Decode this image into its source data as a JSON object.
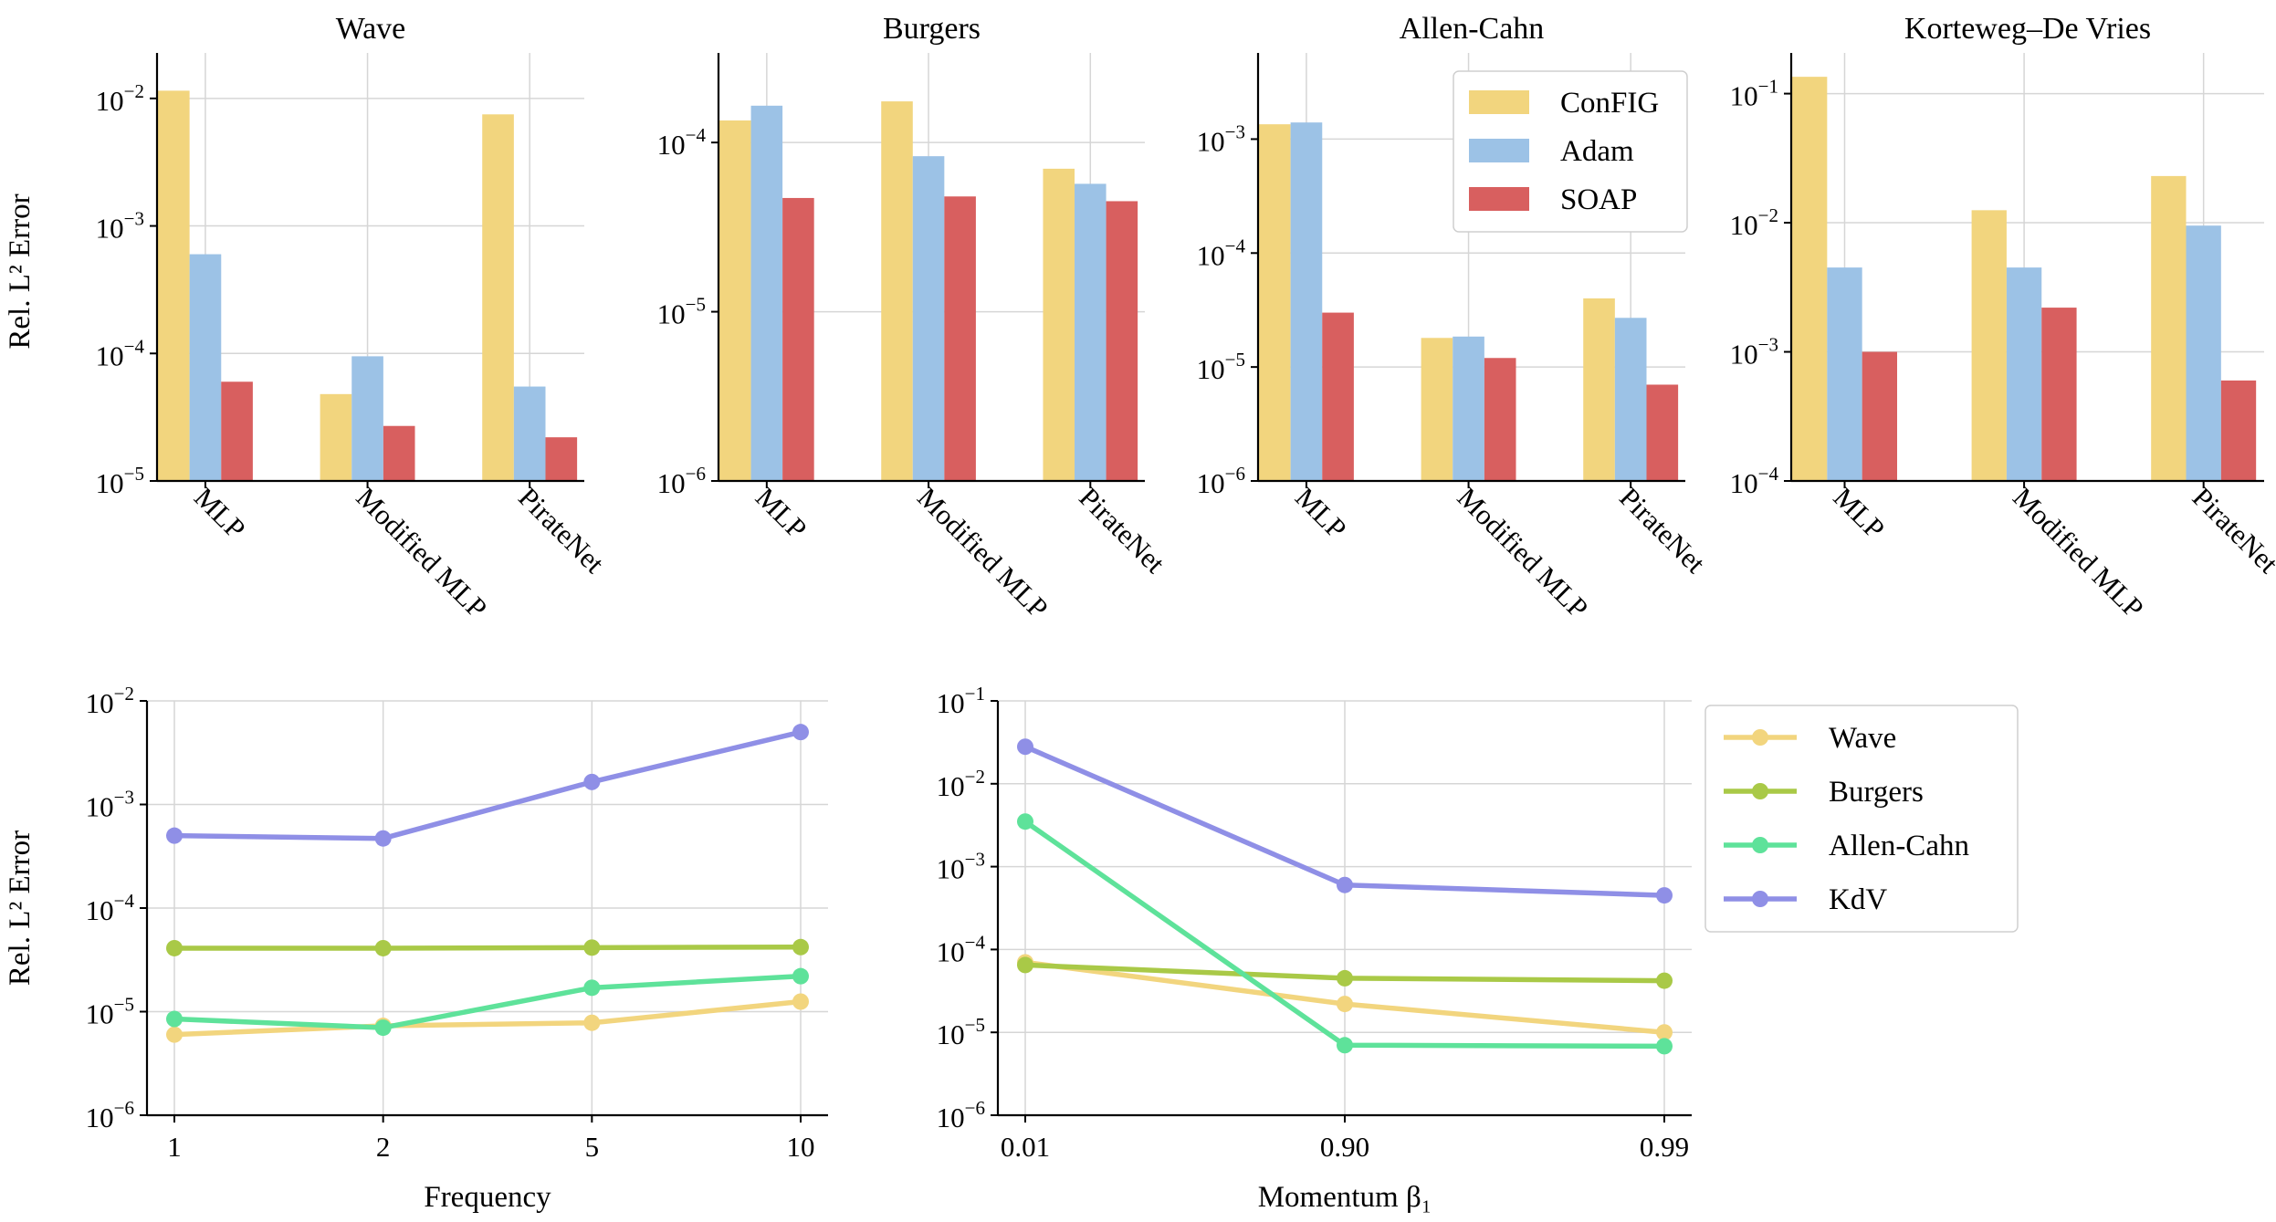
{
  "figure": {
    "colors": {
      "ConFIG": "#f2d57e",
      "Adam": "#9cc2e6",
      "SOAP": "#d85f5f",
      "Wave": "#f2d57e",
      "Burgers": "#a9c947",
      "Allen-Cahn": "#5ee29a",
      "KdV": "#8f8fe6"
    },
    "shared_ylabel": "Rel. L² Error",
    "bar_legend": [
      "ConFIG",
      "Adam",
      "SOAP"
    ],
    "line_legend": [
      "Wave",
      "Burgers",
      "Allen-Cahn",
      "KdV"
    ]
  },
  "chart_data": [
    {
      "type": "bar",
      "title": "Wave",
      "categories": [
        "MLP",
        "Modified MLP",
        "PirateNet"
      ],
      "series": [
        {
          "name": "ConFIG",
          "values": [
            0.0115,
            4.8e-05,
            0.0075
          ]
        },
        {
          "name": "Adam",
          "values": [
            0.0006,
            9.5e-05,
            5.5e-05
          ]
        },
        {
          "name": "SOAP",
          "values": [
            6e-05,
            2.7e-05,
            2.2e-05
          ]
        }
      ],
      "yscale": "log",
      "ylim": [
        1e-05,
        0.022
      ],
      "yticks": [
        -5,
        -4,
        -3,
        -2
      ],
      "ylabel": "Rel. L² Error",
      "xlabel": ""
    },
    {
      "type": "bar",
      "title": "Burgers",
      "categories": [
        "MLP",
        "Modified MLP",
        "PirateNet"
      ],
      "series": [
        {
          "name": "ConFIG",
          "values": [
            0.000135,
            0.000175,
            7e-05
          ]
        },
        {
          "name": "Adam",
          "values": [
            0.000165,
            8.3e-05,
            5.7e-05
          ]
        },
        {
          "name": "SOAP",
          "values": [
            4.7e-05,
            4.8e-05,
            4.5e-05
          ]
        }
      ],
      "yscale": "log",
      "ylim": [
        1e-06,
        0.00033
      ],
      "yticks": [
        -6,
        -5,
        -4
      ],
      "ylabel": "",
      "xlabel": ""
    },
    {
      "type": "bar",
      "title": "Allen-Cahn",
      "categories": [
        "MLP",
        "Modified MLP",
        "PirateNet"
      ],
      "series": [
        {
          "name": "ConFIG",
          "values": [
            0.00135,
            1.8e-05,
            4e-05
          ]
        },
        {
          "name": "Adam",
          "values": [
            0.0014,
            1.85e-05,
            2.7e-05
          ]
        },
        {
          "name": "SOAP",
          "values": [
            3e-05,
            1.2e-05,
            7e-06
          ]
        }
      ],
      "yscale": "log",
      "ylim": [
        1e-06,
        0.0055
      ],
      "yticks": [
        -6,
        -5,
        -4,
        -3
      ],
      "ylabel": "",
      "xlabel": ""
    },
    {
      "type": "bar",
      "title": "Korteweg–De Vries",
      "categories": [
        "MLP",
        "Modified MLP",
        "PirateNet"
      ],
      "series": [
        {
          "name": "ConFIG",
          "values": [
            0.135,
            0.0125,
            0.023
          ]
        },
        {
          "name": "Adam",
          "values": [
            0.0045,
            0.0045,
            0.0095
          ]
        },
        {
          "name": "SOAP",
          "values": [
            0.001,
            0.0022,
            0.0006
          ]
        }
      ],
      "yscale": "log",
      "ylim": [
        0.0001,
        0.2
      ],
      "yticks": [
        -4,
        -3,
        -2,
        -1
      ],
      "ylabel": "",
      "xlabel": ""
    },
    {
      "type": "line",
      "title": "",
      "x": [
        "1",
        "2",
        "5",
        "10"
      ],
      "series": [
        {
          "name": "Wave",
          "values": [
            6e-06,
            7.3e-06,
            7.8e-06,
            1.25e-05
          ]
        },
        {
          "name": "Burgers",
          "values": [
            4.1e-05,
            4.1e-05,
            4.15e-05,
            4.2e-05
          ]
        },
        {
          "name": "Allen-Cahn",
          "values": [
            8.5e-06,
            7e-06,
            1.7e-05,
            2.2e-05
          ]
        },
        {
          "name": "KdV",
          "values": [
            0.0005,
            0.00047,
            0.00165,
            0.005
          ]
        }
      ],
      "yscale": "log",
      "ylim": [
        1e-06,
        0.01
      ],
      "yticks": [
        -6,
        -5,
        -4,
        -3,
        -2
      ],
      "xlabel": "Frequency",
      "ylabel": "Rel. L² Error"
    },
    {
      "type": "line",
      "title": "",
      "x": [
        "0.01",
        "0.90",
        "0.99"
      ],
      "series": [
        {
          "name": "Wave",
          "values": [
            7e-05,
            2.2e-05,
            1e-05
          ]
        },
        {
          "name": "Burgers",
          "values": [
            6.5e-05,
            4.5e-05,
            4.2e-05
          ]
        },
        {
          "name": "Allen-Cahn",
          "values": [
            0.0035,
            7e-06,
            6.8e-06
          ]
        },
        {
          "name": "KdV",
          "values": [
            0.028,
            0.0006,
            0.00045
          ]
        }
      ],
      "yscale": "log",
      "ylim": [
        1e-06,
        0.1
      ],
      "yticks": [
        -6,
        -5,
        -4,
        -3,
        -2,
        -1
      ],
      "xlabel": "Momentum β₁",
      "ylabel": ""
    }
  ]
}
